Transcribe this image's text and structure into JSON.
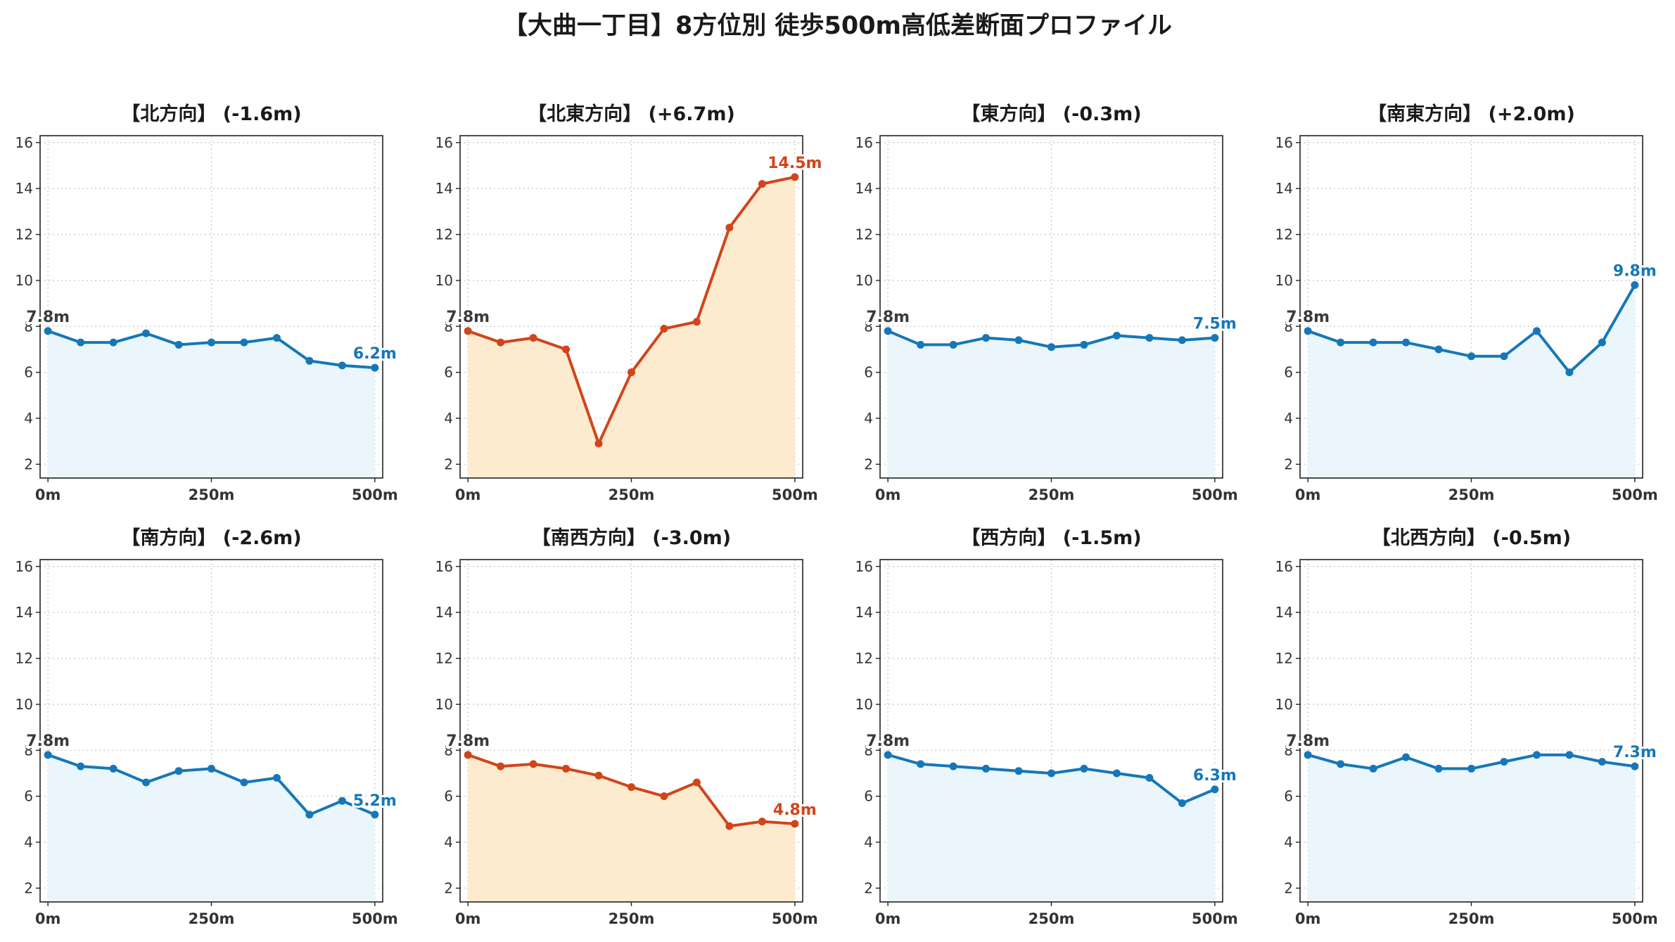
{
  "title": "【大曲一丁目】8方位別 徒歩500m高低差断面プロファイル",
  "colors": {
    "normal_line": "#1677b8",
    "normal_fill": "#eaf6fc",
    "highlight_line": "#d2441a",
    "highlight_fill": "#fdebcf",
    "start_label": "#3a3a3a",
    "grid": "#c8c8c8"
  },
  "chart_data": [
    {
      "type": "line",
      "title": "【北方向】 (-1.6m)",
      "highlight": false,
      "x": [
        0,
        50,
        100,
        150,
        200,
        250,
        300,
        350,
        400,
        450,
        500
      ],
      "values": [
        7.8,
        7.3,
        7.3,
        7.7,
        7.2,
        7.3,
        7.3,
        7.5,
        6.5,
        6.3,
        6.2
      ],
      "start_label": "7.8m",
      "end_label": "6.2m",
      "ylim": [
        1.4,
        16.3
      ],
      "xlim": [
        -12,
        512
      ],
      "yticks": [
        "2",
        "4",
        "6",
        "8",
        "10",
        "12",
        "14",
        "16"
      ],
      "xticks": [
        "0m",
        "250m",
        "500m"
      ],
      "grid": true
    },
    {
      "type": "line",
      "title": "【北東方向】 (+6.7m)",
      "highlight": true,
      "x": [
        0,
        50,
        100,
        150,
        200,
        250,
        300,
        350,
        400,
        450,
        500
      ],
      "values": [
        7.8,
        7.3,
        7.5,
        7.0,
        2.9,
        6.0,
        7.9,
        8.2,
        12.3,
        14.2,
        14.5
      ],
      "start_label": "7.8m",
      "end_label": "14.5m",
      "ylim": [
        1.4,
        16.3
      ],
      "xlim": [
        -12,
        512
      ],
      "yticks": [
        "2",
        "4",
        "6",
        "8",
        "10",
        "12",
        "14",
        "16"
      ],
      "xticks": [
        "0m",
        "250m",
        "500m"
      ],
      "grid": true
    },
    {
      "type": "line",
      "title": "【東方向】 (-0.3m)",
      "highlight": false,
      "x": [
        0,
        50,
        100,
        150,
        200,
        250,
        300,
        350,
        400,
        450,
        500
      ],
      "values": [
        7.8,
        7.2,
        7.2,
        7.5,
        7.4,
        7.1,
        7.2,
        7.6,
        7.5,
        7.4,
        7.5
      ],
      "start_label": "7.8m",
      "end_label": "7.5m",
      "ylim": [
        1.4,
        16.3
      ],
      "xlim": [
        -12,
        512
      ],
      "yticks": [
        "2",
        "4",
        "6",
        "8",
        "10",
        "12",
        "14",
        "16"
      ],
      "xticks": [
        "0m",
        "250m",
        "500m"
      ],
      "grid": true
    },
    {
      "type": "line",
      "title": "【南東方向】 (+2.0m)",
      "highlight": false,
      "x": [
        0,
        50,
        100,
        150,
        200,
        250,
        300,
        350,
        400,
        450,
        500
      ],
      "values": [
        7.8,
        7.3,
        7.3,
        7.3,
        7.0,
        6.7,
        6.7,
        7.8,
        6.0,
        7.3,
        9.8
      ],
      "start_label": "7.8m",
      "end_label": "9.8m",
      "ylim": [
        1.4,
        16.3
      ],
      "xlim": [
        -12,
        512
      ],
      "yticks": [
        "2",
        "4",
        "6",
        "8",
        "10",
        "12",
        "14",
        "16"
      ],
      "xticks": [
        "0m",
        "250m",
        "500m"
      ],
      "grid": true
    },
    {
      "type": "line",
      "title": "【南方向】 (-2.6m)",
      "highlight": false,
      "x": [
        0,
        50,
        100,
        150,
        200,
        250,
        300,
        350,
        400,
        450,
        500
      ],
      "values": [
        7.8,
        7.3,
        7.2,
        6.6,
        7.1,
        7.2,
        6.6,
        6.8,
        5.2,
        5.8,
        5.2
      ],
      "start_label": "7.8m",
      "end_label": "5.2m",
      "ylim": [
        1.4,
        16.3
      ],
      "xlim": [
        -12,
        512
      ],
      "yticks": [
        "2",
        "4",
        "6",
        "8",
        "10",
        "12",
        "14",
        "16"
      ],
      "xticks": [
        "0m",
        "250m",
        "500m"
      ],
      "grid": true
    },
    {
      "type": "line",
      "title": "【南西方向】 (-3.0m)",
      "highlight": true,
      "x": [
        0,
        50,
        100,
        150,
        200,
        250,
        300,
        350,
        400,
        450,
        500
      ],
      "values": [
        7.8,
        7.3,
        7.4,
        7.2,
        6.9,
        6.4,
        6.0,
        6.6,
        4.7,
        4.9,
        4.8
      ],
      "start_label": "7.8m",
      "end_label": "4.8m",
      "ylim": [
        1.4,
        16.3
      ],
      "xlim": [
        -12,
        512
      ],
      "yticks": [
        "2",
        "4",
        "6",
        "8",
        "10",
        "12",
        "14",
        "16"
      ],
      "xticks": [
        "0m",
        "250m",
        "500m"
      ],
      "grid": true
    },
    {
      "type": "line",
      "title": "【西方向】 (-1.5m)",
      "highlight": false,
      "x": [
        0,
        50,
        100,
        150,
        200,
        250,
        300,
        350,
        400,
        450,
        500
      ],
      "values": [
        7.8,
        7.4,
        7.3,
        7.2,
        7.1,
        7.0,
        7.2,
        7.0,
        6.8,
        5.7,
        6.3
      ],
      "start_label": "7.8m",
      "end_label": "6.3m",
      "ylim": [
        1.4,
        16.3
      ],
      "xlim": [
        -12,
        512
      ],
      "yticks": [
        "2",
        "4",
        "6",
        "8",
        "10",
        "12",
        "14",
        "16"
      ],
      "xticks": [
        "0m",
        "250m",
        "500m"
      ],
      "grid": true
    },
    {
      "type": "line",
      "title": "【北西方向】 (-0.5m)",
      "highlight": false,
      "x": [
        0,
        50,
        100,
        150,
        200,
        250,
        300,
        350,
        400,
        450,
        500
      ],
      "values": [
        7.8,
        7.4,
        7.2,
        7.7,
        7.2,
        7.2,
        7.5,
        7.8,
        7.8,
        7.5,
        7.3
      ],
      "start_label": "7.8m",
      "end_label": "7.3m",
      "ylim": [
        1.4,
        16.3
      ],
      "xlim": [
        -12,
        512
      ],
      "yticks": [
        "2",
        "4",
        "6",
        "8",
        "10",
        "12",
        "14",
        "16"
      ],
      "xticks": [
        "0m",
        "250m",
        "500m"
      ],
      "grid": true
    }
  ]
}
